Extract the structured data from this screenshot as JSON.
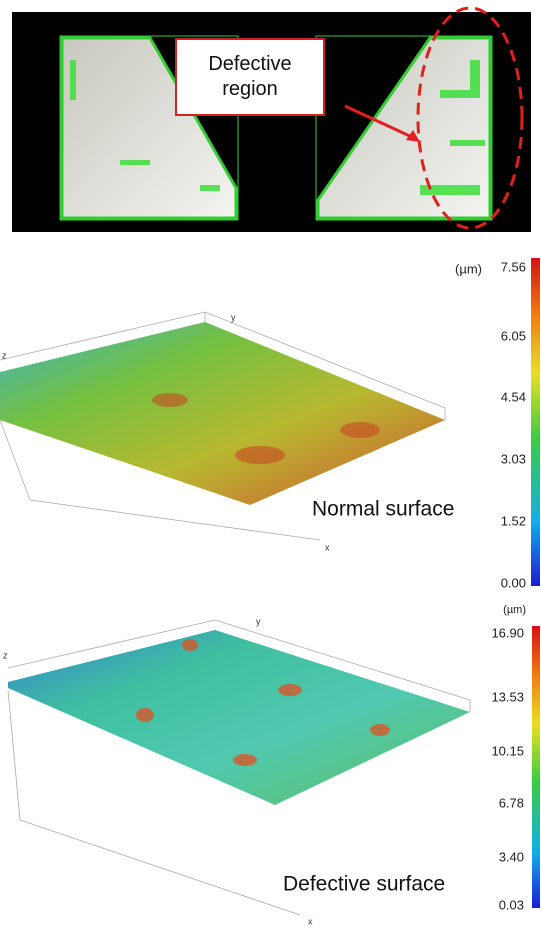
{
  "micrograph": {
    "callout": "Defective region"
  },
  "normal": {
    "unit": "(µm)",
    "scale": [
      "7.56",
      "6.05",
      "4.54",
      "3.03",
      "1.52",
      "0.00"
    ],
    "axes": {
      "x": "x",
      "y": "y",
      "z": "z"
    },
    "caption": "Normal surface"
  },
  "defective": {
    "unit": "(µm)",
    "scale": [
      "16.90",
      "13.53",
      "10.15",
      "6.78",
      "3.40",
      "0.03"
    ],
    "axes": {
      "x": "x",
      "y": "y",
      "z": "z"
    },
    "caption": "Defective surface"
  }
}
